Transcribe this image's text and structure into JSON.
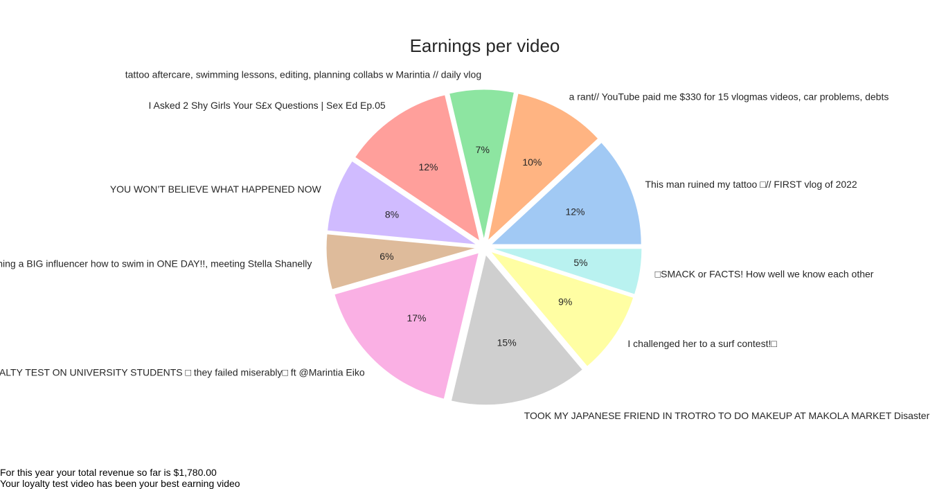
{
  "chart_data": {
    "type": "pie",
    "title": "Earnings per video",
    "start_angle_deg": 0,
    "direction": "counterclockwise",
    "slices": [
      {
        "label": "This man ruined my tattoo □// FIRST vlog of 2022",
        "value": 12,
        "pct_label": "12%",
        "color": "#a1c9f4"
      },
      {
        "label": "a rant// YouTube paid me $330 for 15 vlogmas videos, car problems, debts",
        "value": 10,
        "pct_label": "10%",
        "color": "#ffb482"
      },
      {
        "label": "tattoo aftercare, swimming lessons, editing, planning collabs w Marintia // daily vlog",
        "value": 7,
        "pct_label": "7%",
        "color": "#8de5a1"
      },
      {
        "label": "I Asked 2 Shy Girls Your S£x Questions | Sex Ed Ep.05",
        "value": 12,
        "pct_label": "12%",
        "color": "#ff9f9b"
      },
      {
        "label": "YOU WON’T BELIEVE WHAT HAPPENED NOW",
        "value": 8,
        "pct_label": "8%",
        "color": "#d0bbff"
      },
      {
        "label": "Teaching a BIG influencer how to swim in ONE DAY!!, meeting Stella Shanelly",
        "value": 6,
        "pct_label": "6%",
        "color": "#debb9b"
      },
      {
        "label": "LOYALTY TEST ON UNIVERSITY STUDENTS □ they failed miserably□ ft @Marintia Eiko",
        "value": 17,
        "pct_label": "17%",
        "color": "#fab0e4"
      },
      {
        "label": "TOOK MY JAPANESE FRIEND IN TROTRO TO DO MAKEUP AT MAKOLA MARKET Disaster",
        "value": 15,
        "pct_label": "15%",
        "color": "#cfcfcf"
      },
      {
        "label": "I challenged her to a surf contest!□",
        "value": 9,
        "pct_label": "9%",
        "color": "#fffea3"
      },
      {
        "label": "□SMACK or FACTS! How well we know each other",
        "value": 5,
        "pct_label": "5%",
        "color": "#b9f2f0"
      }
    ]
  },
  "footer": {
    "line1": "For this year your total revenue so far is $1,780.00",
    "line2": "Your loyalty test video has been your best earning video"
  }
}
